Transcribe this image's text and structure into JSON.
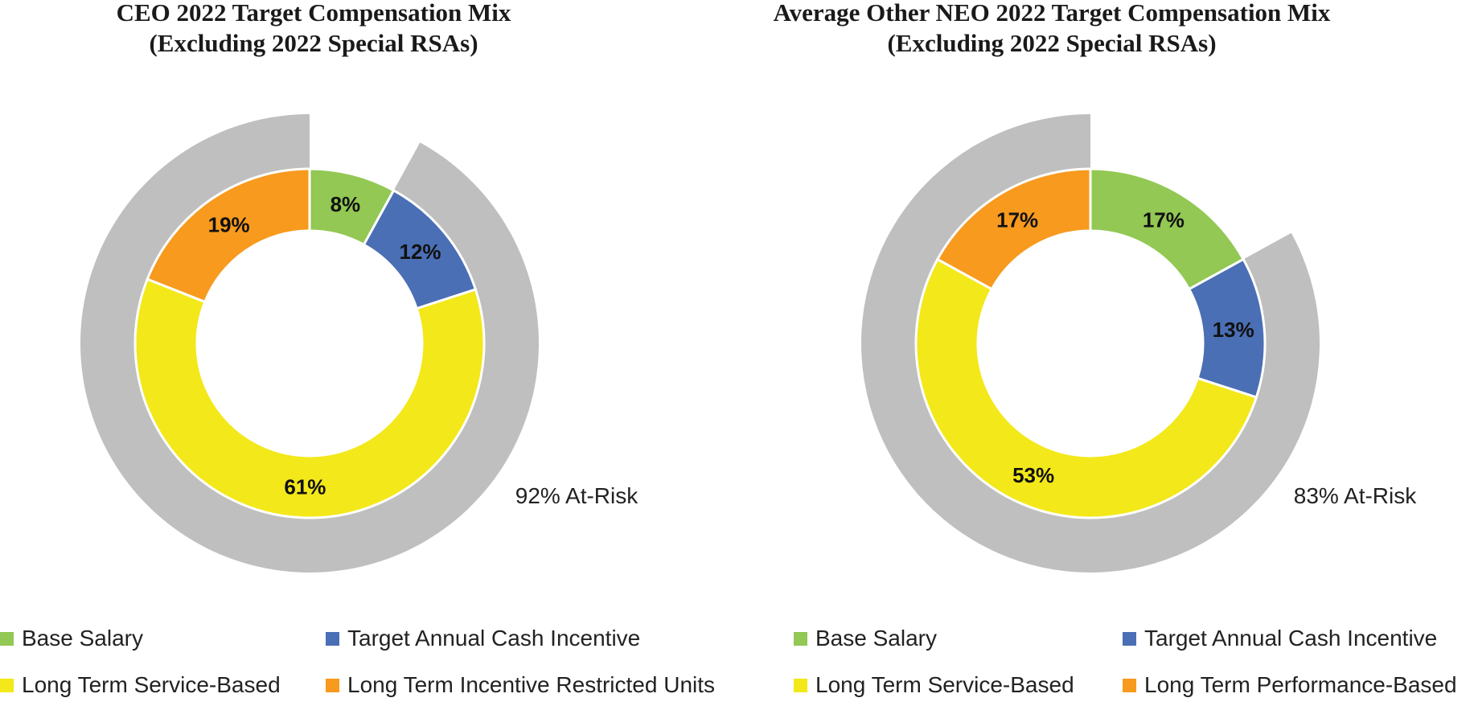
{
  "chart_data": [
    {
      "type": "pie",
      "subtype": "donut",
      "title": [
        "CEO 2022 Target Compensation Mix",
        "(Excluding 2022 Special RSAs)"
      ],
      "categories": [
        "Base Salary",
        "Target Annual Cash Incentive",
        "Long Term Service-Based",
        "Long Term Incentive Restricted Units"
      ],
      "values": [
        8,
        12,
        61,
        19
      ],
      "value_labels": [
        "8%",
        "12%",
        "61%",
        "19%"
      ],
      "colors": [
        "#92C853",
        "#4A6FB5",
        "#F3E81A",
        "#F79A1E"
      ],
      "outer_ring": {
        "value": 92,
        "label": "92% At-Risk",
        "color": "#BFBFBF"
      },
      "legend": [
        "Base Salary",
        "Target Annual Cash Incentive",
        "Long Term Service-Based",
        "Long Term Incentive Restricted Units"
      ]
    },
    {
      "type": "pie",
      "subtype": "donut",
      "title": [
        "Average Other NEO 2022 Target Compensation Mix",
        "(Excluding 2022 Special RSAs)"
      ],
      "categories": [
        "Base Salary",
        "Target Annual Cash Incentive",
        "Long Term Service-Based",
        "Long Term Performance-Based"
      ],
      "values": [
        17,
        13,
        53,
        17
      ],
      "value_labels": [
        "17%",
        "13%",
        "53%",
        "17%"
      ],
      "colors": [
        "#92C853",
        "#4A6FB5",
        "#F3E81A",
        "#F79A1E"
      ],
      "outer_ring": {
        "value": 83,
        "label": "83% At-Risk",
        "color": "#BFBFBF"
      },
      "legend": [
        "Base Salary",
        "Target Annual Cash Incentive",
        "Long Term Service-Based",
        "Long Term Performance-Based"
      ]
    }
  ]
}
